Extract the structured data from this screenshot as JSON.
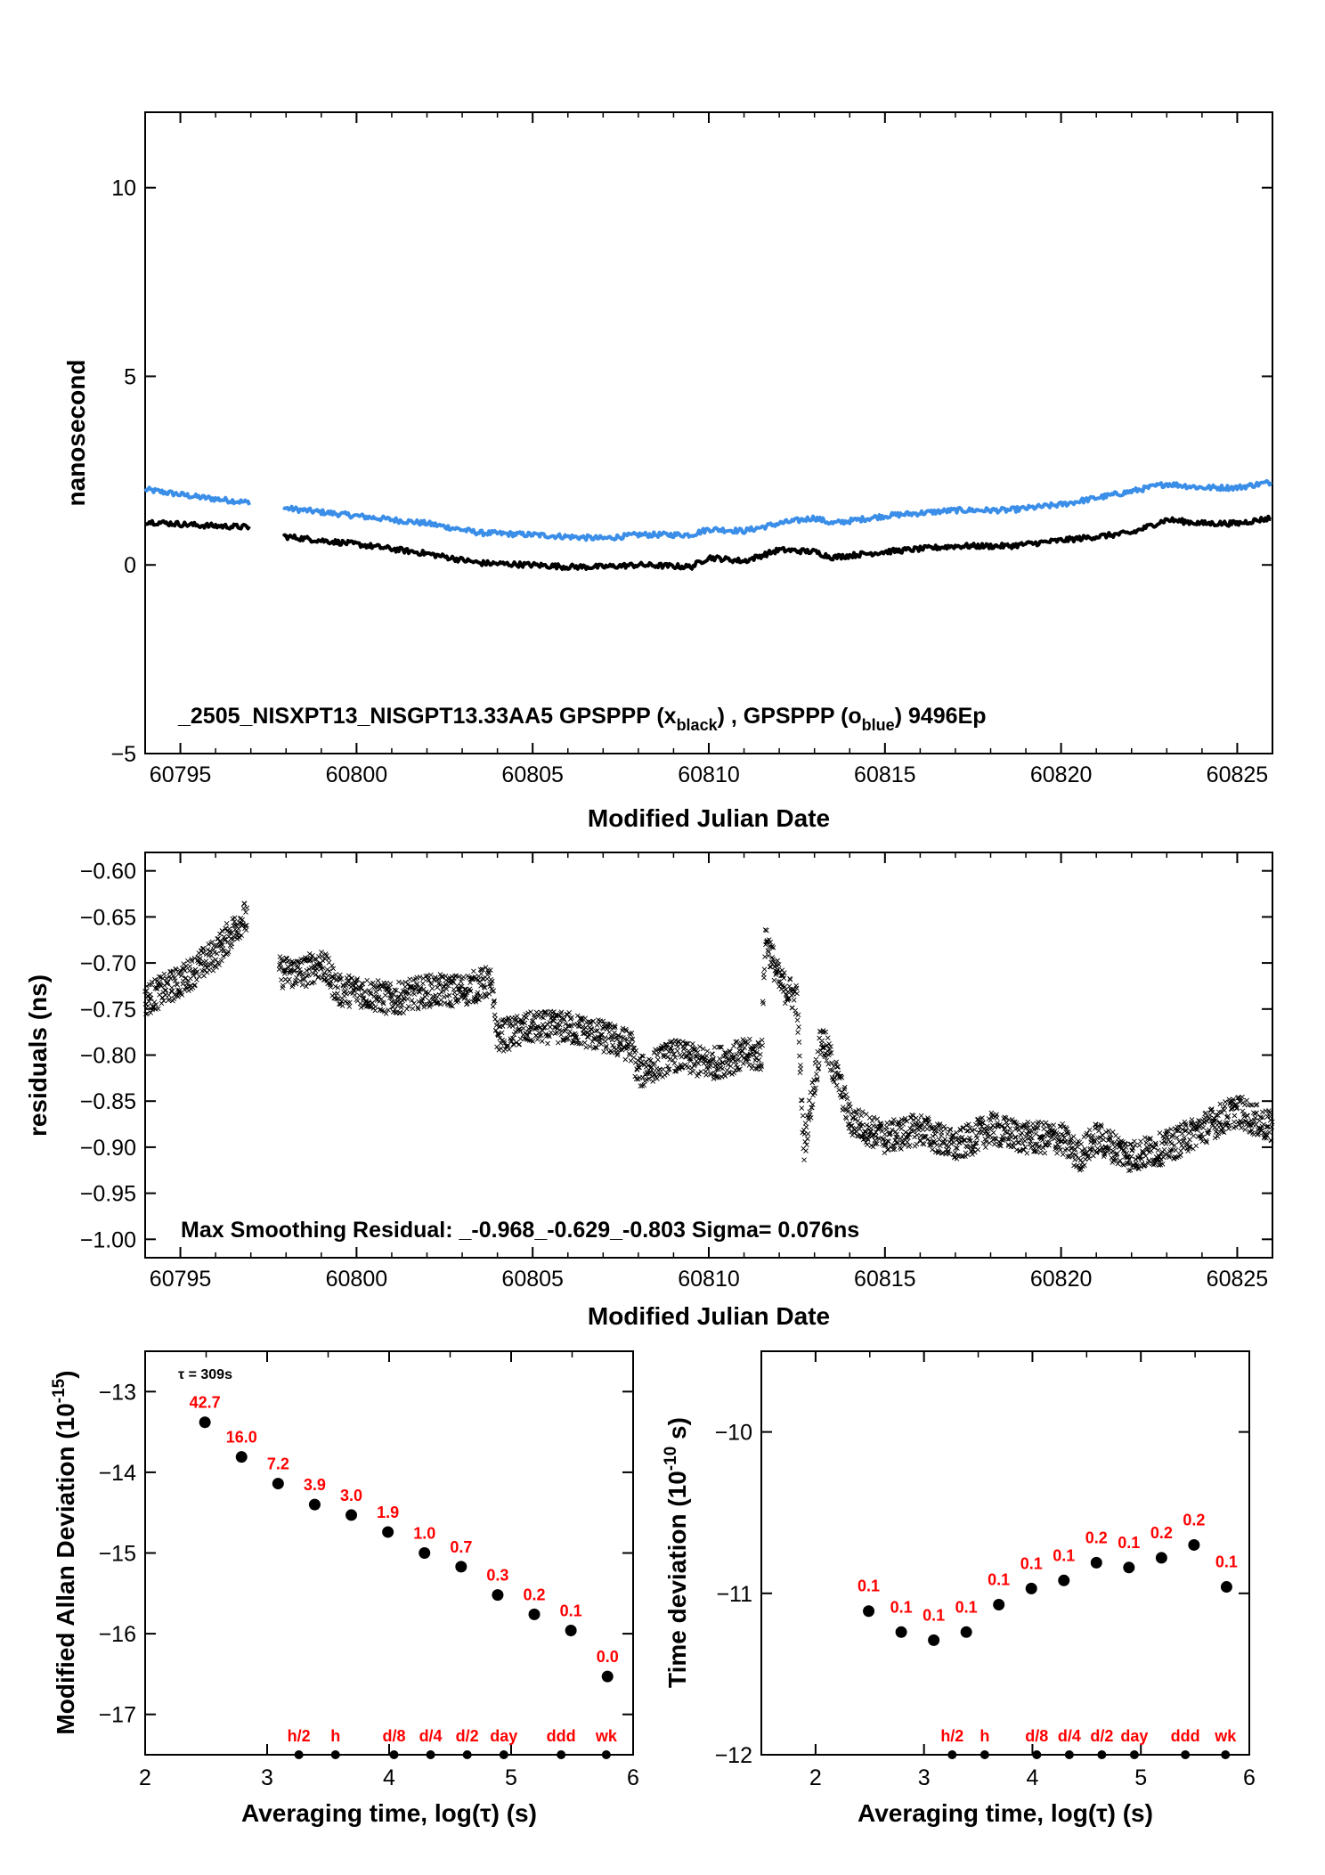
{
  "chart_data": [
    {
      "type": "scatter",
      "xlabel": "Modified Julian Date",
      "ylabel": "nanosecond",
      "xlim": [
        60794,
        60826
      ],
      "ylim": [
        -5,
        12
      ],
      "xticks": [
        "60795",
        "60800",
        "60805",
        "60810",
        "60815",
        "60820",
        "60825"
      ],
      "yticks": [
        "−5",
        "0",
        "5",
        "10"
      ],
      "annotation": "_2505_NISXPT13_NISGPT13.33AA5     GPSPPP (x",
      "annotation_sub1": "black",
      "annotation_mid": ") ,  GPSPPP (o",
      "annotation_sub2": "blue",
      "annotation_end": ")  9496Ep",
      "gap": [
        60797,
        60797.9
      ],
      "colors": {
        "black_series": "#000000",
        "blue_series": "#3b8ee8"
      },
      "series": [
        {
          "name": "x black",
          "points": [
            [
              60794,
              1.15
            ],
            [
              60795.5,
              1.05
            ],
            [
              60797,
              1.0
            ],
            [
              60798,
              0.75
            ],
            [
              60800,
              0.55
            ],
            [
              60802,
              0.3
            ],
            [
              60803.5,
              0.05
            ],
            [
              60805,
              0.0
            ],
            [
              60806,
              -0.05
            ],
            [
              60807,
              -0.05
            ],
            [
              60808,
              0.0
            ],
            [
              60809.5,
              -0.05
            ],
            [
              60810,
              0.2
            ],
            [
              60811,
              0.1
            ],
            [
              60812,
              0.4
            ],
            [
              60813,
              0.35
            ],
            [
              60813.5,
              0.2
            ],
            [
              60815,
              0.35
            ],
            [
              60817,
              0.5
            ],
            [
              60818.5,
              0.5
            ],
            [
              60820,
              0.65
            ],
            [
              60822,
              0.85
            ],
            [
              60823,
              1.2
            ],
            [
              60824,
              1.1
            ],
            [
              60825,
              1.1
            ],
            [
              60826,
              1.25
            ]
          ]
        },
        {
          "name": "o blue",
          "points": [
            [
              60794,
              2.0
            ],
            [
              60795.5,
              1.8
            ],
            [
              60797,
              1.65
            ],
            [
              60798,
              1.5
            ],
            [
              60800,
              1.3
            ],
            [
              60802,
              1.1
            ],
            [
              60803.5,
              0.85
            ],
            [
              60805,
              0.8
            ],
            [
              60806,
              0.75
            ],
            [
              60807,
              0.7
            ],
            [
              60808,
              0.8
            ],
            [
              60809.5,
              0.8
            ],
            [
              60810,
              0.95
            ],
            [
              60811,
              0.9
            ],
            [
              60812,
              1.1
            ],
            [
              60813,
              1.25
            ],
            [
              60813.5,
              1.1
            ],
            [
              60815,
              1.3
            ],
            [
              60817,
              1.45
            ],
            [
              60818.5,
              1.45
            ],
            [
              60820,
              1.6
            ],
            [
              60822,
              1.95
            ],
            [
              60823,
              2.15
            ],
            [
              60824,
              2.05
            ],
            [
              60825,
              2.05
            ],
            [
              60826,
              2.2
            ]
          ]
        }
      ]
    },
    {
      "type": "scatter",
      "xlabel": "Modified Julian Date",
      "ylabel": "residuals (ns)",
      "xlim": [
        60794,
        60826
      ],
      "ylim": [
        -1.02,
        -0.58
      ],
      "xticks": [
        "60795",
        "60800",
        "60805",
        "60810",
        "60815",
        "60820",
        "60825"
      ],
      "yticks": [
        "−0.60",
        "−0.65",
        "−0.70",
        "−0.75",
        "−0.80",
        "−0.85",
        "−0.90",
        "−0.95",
        "−1.00"
      ],
      "annotation": "Max Smoothing Residual: _-0.968_-0.629_-0.803  Sigma= 0.076ns",
      "gap": [
        60796.9,
        60797.8
      ],
      "series": [
        {
          "name": "residuals",
          "points": [
            [
              60794,
              -0.74
            ],
            [
              60795,
              -0.72
            ],
            [
              60796,
              -0.69
            ],
            [
              60796.8,
              -0.65
            ],
            [
              60797.8,
              -0.71
            ],
            [
              60798.5,
              -0.71
            ],
            [
              60799,
              -0.7
            ],
            [
              60799.5,
              -0.73
            ],
            [
              60800,
              -0.73
            ],
            [
              60801,
              -0.74
            ],
            [
              60802,
              -0.73
            ],
            [
              60803,
              -0.73
            ],
            [
              60803.8,
              -0.72
            ],
            [
              60804,
              -0.78
            ],
            [
              60805,
              -0.77
            ],
            [
              60806,
              -0.77
            ],
            [
              60807,
              -0.78
            ],
            [
              60807.8,
              -0.79
            ],
            [
              60808,
              -0.82
            ],
            [
              60809,
              -0.8
            ],
            [
              60810,
              -0.81
            ],
            [
              60811,
              -0.8
            ],
            [
              60811.5,
              -0.8
            ],
            [
              60811.6,
              -0.67
            ],
            [
              60812,
              -0.72
            ],
            [
              60812.5,
              -0.74
            ],
            [
              60812.7,
              -0.9
            ],
            [
              60813.2,
              -0.78
            ],
            [
              60813.7,
              -0.83
            ],
            [
              60814,
              -0.87
            ],
            [
              60815,
              -0.89
            ],
            [
              60816,
              -0.88
            ],
            [
              60817,
              -0.9
            ],
            [
              60818,
              -0.88
            ],
            [
              60819,
              -0.89
            ],
            [
              60820,
              -0.89
            ],
            [
              60820.5,
              -0.91
            ],
            [
              60821,
              -0.89
            ],
            [
              60822,
              -0.91
            ],
            [
              60823,
              -0.9
            ],
            [
              60824,
              -0.88
            ],
            [
              60825,
              -0.86
            ],
            [
              60826,
              -0.88
            ]
          ]
        }
      ]
    },
    {
      "type": "scatter",
      "xlabel": "Averaging time, log(τ) (s)",
      "ylabel": "Modified Allan Deviation (10",
      "ylabel_sup": "-15",
      "ylabel_end": ")",
      "xlim": [
        2,
        6
      ],
      "ylim": [
        -17.5,
        -12.5
      ],
      "xticks": [
        "2",
        "3",
        "4",
        "5",
        "6"
      ],
      "yticks": [
        "−13",
        "−14",
        "−15",
        "−16",
        "−17"
      ],
      "tau_note": "τ = 309s",
      "x": [
        2.49,
        2.79,
        3.09,
        3.39,
        3.69,
        3.99,
        4.29,
        4.59,
        4.89,
        5.19,
        5.49,
        5.79
      ],
      "y": [
        -13.38,
        -13.81,
        -14.14,
        -14.4,
        -14.53,
        -14.74,
        -15.0,
        -15.17,
        -15.52,
        -15.76,
        -15.96,
        -16.53
      ],
      "point_labels": [
        "42.7",
        "16.0",
        "7.2",
        "3.9",
        "3.0",
        "1.9",
        "1.0",
        "0.7",
        "0.3",
        "0.2",
        "0.1",
        "0.0"
      ],
      "markers": [
        {
          "label": "h/2",
          "x": 3.26
        },
        {
          "label": "h",
          "x": 3.56
        },
        {
          "label": "d/8",
          "x": 4.04
        },
        {
          "label": "d/4",
          "x": 4.34
        },
        {
          "label": "d/2",
          "x": 4.64
        },
        {
          "label": "day",
          "x": 4.94
        },
        {
          "label": "ddd",
          "x": 5.41
        },
        {
          "label": "wk",
          "x": 5.78
        }
      ]
    },
    {
      "type": "scatter",
      "xlabel": "Averaging time, log(τ) (s)",
      "ylabel": "Time deviation (10",
      "ylabel_sup": "-10",
      "ylabel_end": " s)",
      "xlim": [
        1.5,
        6
      ],
      "ylim": [
        -12,
        -9.5
      ],
      "xticks": [
        "2",
        "3",
        "4",
        "5",
        "6"
      ],
      "yticks": [
        "−10",
        "−11",
        "−12"
      ],
      "x": [
        2.49,
        2.79,
        3.09,
        3.39,
        3.69,
        3.99,
        4.29,
        4.59,
        4.89,
        5.19,
        5.49,
        5.79
      ],
      "y": [
        -11.11,
        -11.24,
        -11.29,
        -11.24,
        -11.07,
        -10.97,
        -10.92,
        -10.81,
        -10.84,
        -10.78,
        -10.7,
        -10.96
      ],
      "point_labels": [
        "0.1",
        "0.1",
        "0.1",
        "0.1",
        "0.1",
        "0.1",
        "0.1",
        "0.2",
        "0.1",
        "0.2",
        "0.2",
        "0.1"
      ],
      "markers": [
        {
          "label": "h/2",
          "x": 3.26
        },
        {
          "label": "h",
          "x": 3.56
        },
        {
          "label": "d/8",
          "x": 4.04
        },
        {
          "label": "d/4",
          "x": 4.34
        },
        {
          "label": "d/2",
          "x": 4.64
        },
        {
          "label": "day",
          "x": 4.94
        },
        {
          "label": "ddd",
          "x": 5.41
        },
        {
          "label": "wk",
          "x": 5.78
        }
      ]
    }
  ]
}
